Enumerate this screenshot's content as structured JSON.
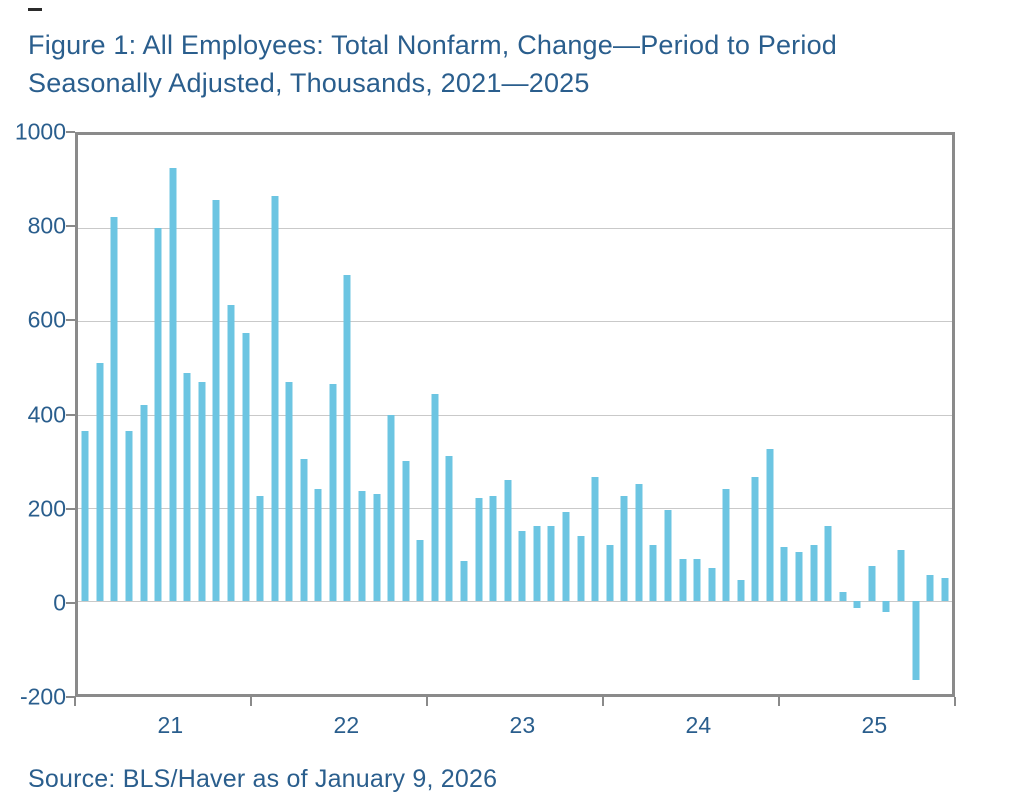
{
  "page": {
    "title_line1": "Figure 1: All Employees: Total Nonfarm, Change—Period to Period",
    "title_line2": "Seasonally Adjusted, Thousands, 2021—2025",
    "source": "Source: BLS/Haver as of January 9, 2026"
  },
  "colors": {
    "bar": "#6cc5e2",
    "text": "#2a5e8d",
    "frame": "#8a8a8a",
    "gridline": "#c9c9c9"
  },
  "chart_data": {
    "type": "bar",
    "title": "Figure 1: All Employees: Total Nonfarm, Change—Period to Period, Seasonally Adjusted, Thousands, 2021—2025",
    "xlabel": "",
    "ylabel": "Thousands",
    "ylim": [
      -200,
      1000
    ],
    "grid": "horizontal",
    "legend": "none",
    "ytick_labels": [
      "1000",
      "800",
      "600",
      "400",
      "200",
      "0",
      "-200"
    ],
    "ytick_values": [
      1000,
      800,
      600,
      400,
      200,
      0,
      -200
    ],
    "gridline_values": [
      800,
      600,
      400,
      200,
      0
    ],
    "xtick_year_labels": [
      "21",
      "22",
      "23",
      "24",
      "25"
    ],
    "categories": [
      "Jan 2021",
      "Feb 2021",
      "Mar 2021",
      "Apr 2021",
      "May 2021",
      "Jun 2021",
      "Jul 2021",
      "Aug 2021",
      "Sep 2021",
      "Oct 2021",
      "Nov 2021",
      "Dec 2021",
      "Jan 2022",
      "Feb 2022",
      "Mar 2022",
      "Apr 2022",
      "May 2022",
      "Jun 2022",
      "Jul 2022",
      "Aug 2022",
      "Sep 2022",
      "Oct 2022",
      "Nov 2022",
      "Dec 2022",
      "Jan 2023",
      "Feb 2023",
      "Mar 2023",
      "Apr 2023",
      "May 2023",
      "Jun 2023",
      "Jul 2023",
      "Aug 2023",
      "Sep 2023",
      "Oct 2023",
      "Nov 2023",
      "Dec 2023",
      "Jan 2024",
      "Feb 2024",
      "Mar 2024",
      "Apr 2024",
      "May 2024",
      "Jun 2024",
      "Jul 2024",
      "Aug 2024",
      "Sep 2024",
      "Oct 2024",
      "Nov 2024",
      "Dec 2024",
      "Jan 2025",
      "Feb 2025",
      "Mar 2025",
      "Apr 2025",
      "May 2025",
      "Jun 2025",
      "Jul 2025",
      "Aug 2025",
      "Sep 2025",
      "Oct 2025",
      "Nov 2025",
      "Dec 2025"
    ],
    "values": [
      365,
      510,
      825,
      365,
      420,
      800,
      930,
      490,
      470,
      860,
      635,
      575,
      225,
      870,
      470,
      305,
      240,
      465,
      700,
      235,
      230,
      400,
      300,
      130,
      445,
      310,
      85,
      220,
      225,
      260,
      150,
      160,
      160,
      190,
      140,
      265,
      120,
      225,
      250,
      120,
      195,
      90,
      90,
      70,
      240,
      45,
      265,
      325,
      115,
      105,
      120,
      160,
      20,
      -15,
      75,
      -25,
      110,
      -170,
      55,
      50
    ]
  }
}
